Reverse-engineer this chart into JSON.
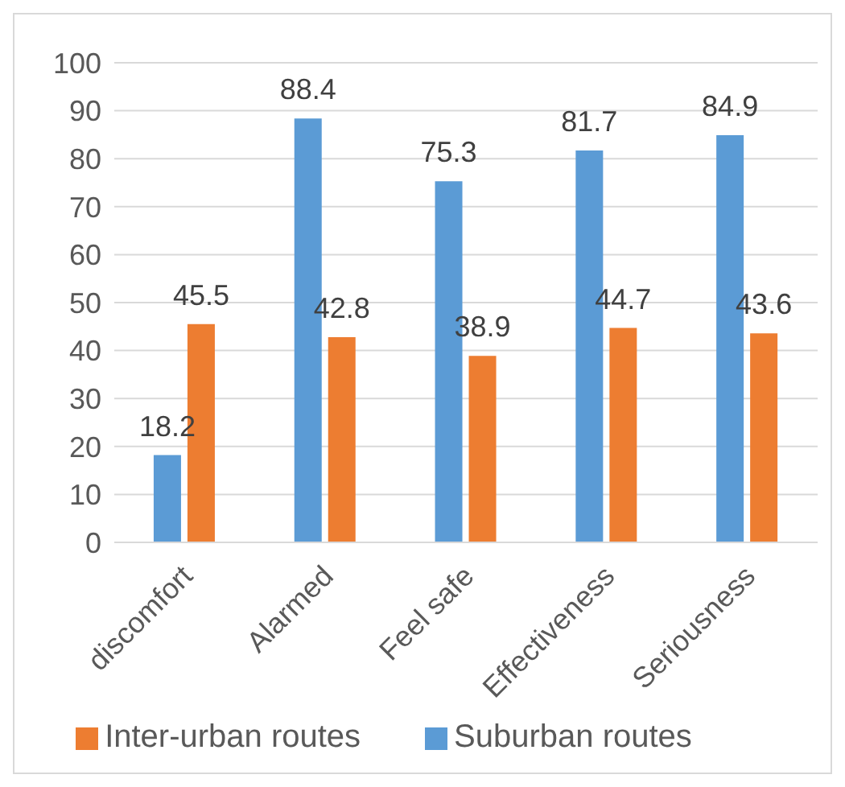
{
  "chart_data": {
    "type": "bar",
    "categories": [
      "discomfort",
      "Alarmed",
      "Feel safe",
      "Effectiveness",
      "Seriousness"
    ],
    "series": [
      {
        "name": "Suburban routes",
        "color": "#5b9bd5",
        "values": [
          18.2,
          88.4,
          75.3,
          81.7,
          84.9
        ]
      },
      {
        "name": "Inter-urban routes",
        "color": "#ed7d31",
        "values": [
          45.5,
          42.8,
          38.9,
          44.7,
          43.6
        ]
      }
    ],
    "ylim": [
      0,
      100
    ],
    "yticks": [
      0,
      10,
      20,
      30,
      40,
      50,
      60,
      70,
      80,
      90,
      100
    ],
    "grid": "y",
    "legend": "bottom",
    "data_labels": true
  }
}
